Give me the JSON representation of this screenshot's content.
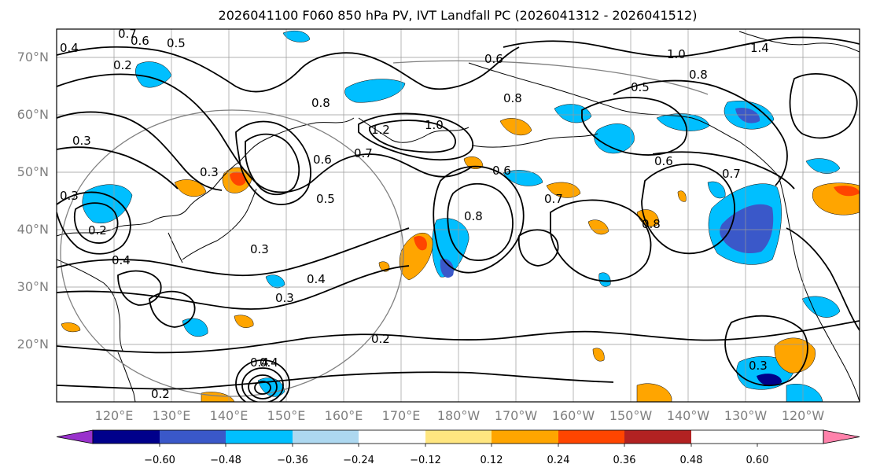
{
  "title": "2026041100 F060 850 hPa PV, IVT Landfall PC (2026041312 - 2026041512)",
  "map": {
    "lat_labels": [
      "70°N",
      "60°N",
      "50°N",
      "40°N",
      "30°N",
      "20°N"
    ],
    "lon_labels": [
      "120°E",
      "130°E",
      "140°E",
      "150°E",
      "160°E",
      "170°E",
      "180°W",
      "170°W",
      "160°W",
      "150°W",
      "140°W",
      "130°W",
      "120°W"
    ]
  },
  "colorbar": {
    "ticks": [
      "−0.60",
      "−0.48",
      "−0.36",
      "−0.24",
      "−0.12",
      "0.12",
      "0.24",
      "0.36",
      "0.48",
      "0.60"
    ],
    "colors": [
      "#9932cc",
      "#00008b",
      "#3a58c9",
      "#00bfff",
      "#add8f0",
      "#ffffff",
      "#ffe680",
      "#ffa500",
      "#ff4500",
      "#b22222",
      "#ff82ab"
    ]
  },
  "contour_labels": [
    {
      "text": "0.7"
    },
    {
      "text": "0.6"
    },
    {
      "text": "0.5"
    },
    {
      "text": "0.4"
    },
    {
      "text": "0.2"
    },
    {
      "text": "0.3"
    },
    {
      "text": "0.3"
    },
    {
      "text": "0.3"
    },
    {
      "text": "0.2"
    },
    {
      "text": "0.4"
    },
    {
      "text": "0.5"
    },
    {
      "text": "0.3"
    },
    {
      "text": "0.4"
    },
    {
      "text": "0.3"
    },
    {
      "text": "0.2"
    },
    {
      "text": "0.4"
    },
    {
      "text": "0.6"
    },
    {
      "text": "0.7"
    },
    {
      "text": "0.8"
    },
    {
      "text": "1.2"
    },
    {
      "text": "1.0"
    },
    {
      "text": "0.6"
    },
    {
      "text": "0.8"
    },
    {
      "text": "0.6"
    },
    {
      "text": "0.7"
    },
    {
      "text": "0.8"
    },
    {
      "text": "1.0"
    },
    {
      "text": "1.4"
    },
    {
      "text": "0.8"
    },
    {
      "text": "0.5"
    },
    {
      "text": "0.6"
    },
    {
      "text": "0.7"
    },
    {
      "text": "0.8"
    },
    {
      "text": "0.3"
    },
    {
      "text": "0.2"
    },
    {
      "text": "0.4"
    }
  ]
}
